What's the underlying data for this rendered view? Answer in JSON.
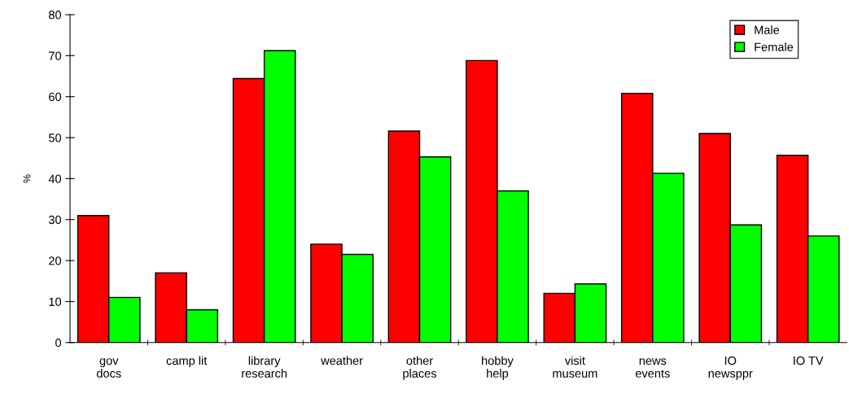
{
  "chart_data": {
    "type": "bar",
    "ylabel": "%",
    "categories": [
      "gov\ndocs",
      "camp lit",
      "library\nresearch",
      "weather",
      "other\nplaces",
      "hobby\nhelp",
      "visit\nmuseum",
      "news\nevents",
      "IO\nnewsppr",
      "IO TV"
    ],
    "series": [
      {
        "name": "Male",
        "color": "#ff0000",
        "values": [
          31,
          17,
          64.4,
          24,
          51.6,
          68.8,
          12,
          60.8,
          51,
          45.7
        ]
      },
      {
        "name": "Female",
        "color": "#00ff00",
        "values": [
          11,
          8,
          71.2,
          21.5,
          45.3,
          37,
          14.3,
          41.3,
          28.7,
          26
        ]
      }
    ],
    "ylim": [
      0,
      80
    ],
    "yticks": [
      0,
      10,
      20,
      30,
      40,
      50,
      60,
      70,
      80
    ],
    "grid": false,
    "legend": "top right"
  }
}
